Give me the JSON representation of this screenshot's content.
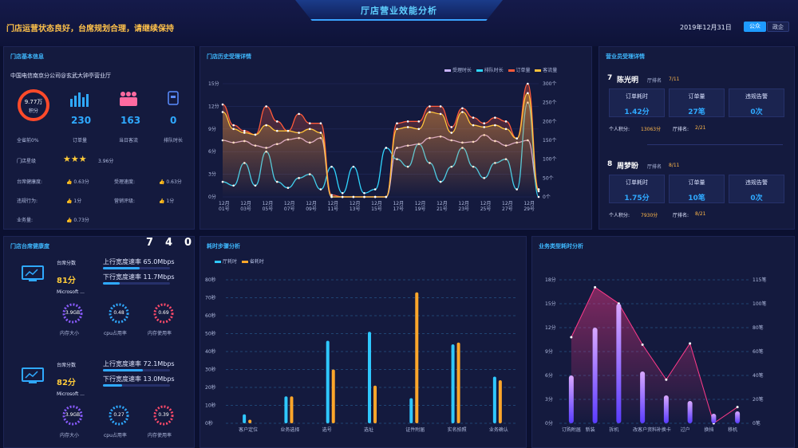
{
  "header": {
    "title": "厅店营业效能分析",
    "status": "门店运营状态良好，台席规划合理，请继续保持",
    "date": "2019年12月31日",
    "toggle_left": "公众",
    "toggle_right": "政企"
  },
  "store_basic": {
    "title": "门店基本信息",
    "name": "中国电信南京分公司@玄武大钟亭营业厅",
    "score_value": "9.77万",
    "score_unit": "积分",
    "score_caption": "全省前0%",
    "stats": [
      {
        "value": "230",
        "label": "订单量"
      },
      {
        "value": "163",
        "label": "当日客流"
      },
      {
        "value": "0",
        "label": "排队时长"
      }
    ],
    "level_label": "门店星级",
    "level_value": "3.96分",
    "level_stars": 3,
    "metrics": [
      {
        "label": "台席健康度:",
        "value": "0.63分"
      },
      {
        "label": "受理速度:",
        "value": "0.63分"
      },
      {
        "label": "违规行为:",
        "value": "1分"
      },
      {
        "label": "营销评级:",
        "value": "1分"
      },
      {
        "label": "业务量:",
        "value": "0.73分"
      }
    ],
    "colors": {
      "accent": "#2fa9ff",
      "ring": "#ff4a2a",
      "people": "#ff6aa0",
      "star": "#ffcb3a"
    }
  },
  "history": {
    "title": "门店历史受理详情",
    "legend": [
      "受理时长",
      "排队时长",
      "订单量",
      "客流量"
    ],
    "colors": [
      "#c9b3ff",
      "#2fd6ff",
      "#ff5a3a",
      "#ffc23a"
    ],
    "y_left": [
      "15分",
      "12分",
      "9分",
      "6分",
      "3分",
      "0分"
    ],
    "y_right": [
      "300个",
      "250个",
      "200个",
      "150个",
      "100个",
      "50个",
      "0个"
    ],
    "x": [
      "12月\n01号",
      "12月\n03号",
      "12月\n05号",
      "12月\n07号",
      "12月\n09号",
      "12月\n11号",
      "12月\n13号",
      "12月\n15号",
      "12月\n17号",
      "12月\n19号",
      "12月\n21号",
      "12月\n23号",
      "12月\n25号",
      "12月\n27号",
      "12月\n29号"
    ]
  },
  "staff": {
    "title": "营业员受理详情",
    "people": [
      {
        "rank": "7",
        "name": "陈光明",
        "store_rank_label": "厅排名",
        "store_rank": "7/11",
        "boxes": [
          {
            "h": "订单耗时",
            "v": "1.42分"
          },
          {
            "h": "订单量",
            "v": "27笔"
          },
          {
            "h": "违规告警",
            "v": "0次"
          }
        ],
        "points_label": "个人积分:",
        "points": "13063分",
        "hall_rank_label": "厅排名:",
        "hall_rank": "2/21"
      },
      {
        "rank": "8",
        "name": "周梦盼",
        "store_rank_label": "厅排名",
        "store_rank": "8/11",
        "boxes": [
          {
            "h": "订单耗时",
            "v": "1.75分"
          },
          {
            "h": "订单量",
            "v": "10笔"
          },
          {
            "h": "违规告警",
            "v": "0次"
          }
        ],
        "points_label": "个人积分:",
        "points": "7930分",
        "hall_rank_label": "厅排名:",
        "hall_rank": "8/21"
      }
    ]
  },
  "desk_health": {
    "title": "门店台席健康度",
    "counter": [
      "7",
      "4",
      "0"
    ],
    "desks": [
      {
        "score_label": "台席分数",
        "score": "81分",
        "os": "Microsoft ...",
        "up_label": "上行宽度速率",
        "up": "65.0Mbps",
        "up_pct": 0.55,
        "down_label": "下行宽度速率",
        "down": "11.7Mbps",
        "down_pct": 0.25,
        "mem": "3.9GB",
        "mem_label": "内存大小",
        "cpu": "0.48",
        "cpu_label": "cpu占用率",
        "memu": "0.69",
        "memu_label": "内存使用率"
      },
      {
        "score_label": "台席分数",
        "score": "82分",
        "os": "Microsoft ...",
        "up_label": "上行宽度速率",
        "up": "72.1Mbps",
        "up_pct": 0.6,
        "down_label": "下行宽度速率",
        "down": "13.0Mbps",
        "down_pct": 0.28,
        "mem": "3.9GB",
        "mem_label": "内存大小",
        "cpu": "0.27",
        "cpu_label": "cpu占用率",
        "memu": "0.39",
        "memu_label": "内存使用率"
      }
    ]
  },
  "step_time": {
    "title": "耗时步骤分析",
    "legend": [
      "厅耗时",
      "省耗时"
    ],
    "colors": [
      "#2fc8ff",
      "#ffa62a"
    ],
    "y": [
      "80秒",
      "70秒",
      "60秒",
      "50秒",
      "40秒",
      "30秒",
      "20秒",
      "10秒",
      "0秒"
    ]
  },
  "biz_time": {
    "title": "业务类型耗时分析",
    "y_left": [
      "18分",
      "15分",
      "12分",
      "9分",
      "6分",
      "3分",
      "0分"
    ],
    "y_right": [
      "115笔",
      "100笔",
      "80笔",
      "60笔",
      "40笔",
      "20笔",
      "0笔"
    ]
  },
  "chart_data": [
    {
      "type": "line",
      "title": "门店历史受理详情",
      "x": [
        "12月01号",
        "12月02号",
        "12月03号",
        "12月04号",
        "12月05号",
        "12月06号",
        "12月07号",
        "12月08号",
        "12月09号",
        "12月10号",
        "12月11号",
        "12月12号",
        "12月13号",
        "12月14号",
        "12月15号",
        "12月16号",
        "12月17号",
        "12月18号",
        "12月19号",
        "12月20号",
        "12月21号",
        "12月22号",
        "12月23号",
        "12月24号",
        "12月25号",
        "12月26号",
        "12月27号",
        "12月28号",
        "12月29号",
        "12月30号"
      ],
      "series": [
        {
          "name": "受理时长",
          "axis": "left",
          "values": [
            7.5,
            7.2,
            7.4,
            6.8,
            6.5,
            7.0,
            7.6,
            7.8,
            7.2,
            7.8,
            0,
            0,
            0,
            0,
            0,
            0,
            6.5,
            6.8,
            7.0,
            7.8,
            8.0,
            7.5,
            7.2,
            7.3,
            8.2,
            7.4,
            6.8,
            7.2,
            7.5,
            1
          ]
        },
        {
          "name": "排队时长",
          "axis": "left",
          "values": [
            2.0,
            1.5,
            4.5,
            1.5,
            6.0,
            2.0,
            1.2,
            2.5,
            3.0,
            1.0,
            4.0,
            0.5,
            4.0,
            0.5,
            1.0,
            6.5,
            5.0,
            4.0,
            7.0,
            4.5,
            2.0,
            4.0,
            6.5,
            4.0,
            2.5,
            4.5,
            5.0,
            1.0,
            12.5,
            0
          ]
        },
        {
          "name": "订单量",
          "axis": "right",
          "values": [
            245,
            190,
            175,
            165,
            240,
            200,
            175,
            220,
            195,
            195,
            5,
            0,
            0,
            0,
            0,
            0,
            195,
            200,
            200,
            240,
            240,
            185,
            235,
            210,
            195,
            210,
            200,
            155,
            300,
            20
          ]
        },
        {
          "name": "客流量",
          "axis": "right",
          "values": [
            225,
            180,
            170,
            165,
            190,
            175,
            175,
            170,
            180,
            170,
            0,
            0,
            0,
            0,
            0,
            0,
            180,
            185,
            180,
            225,
            220,
            170,
            225,
            190,
            185,
            190,
            180,
            155,
            275,
            15
          ]
        }
      ],
      "ylim_left": [
        0,
        15
      ],
      "ylim_right": [
        0,
        300
      ]
    },
    {
      "type": "bar",
      "title": "耗时步骤分析",
      "categories": [
        "客户定位",
        "业务选择",
        "选号",
        "选址",
        "证件附届",
        "实名拍照",
        "业务确认"
      ],
      "series": [
        {
          "name": "厅耗时",
          "values": [
            5,
            15,
            46,
            51,
            14,
            44,
            26
          ]
        },
        {
          "name": "省耗时",
          "values": [
            2,
            15,
            30,
            21,
            73,
            45,
            24
          ]
        }
      ],
      "ylim": [
        0,
        80
      ]
    },
    {
      "type": "bar",
      "title": "业务类型耗时分析",
      "categories": [
        "订购附届",
        "新装",
        "拆机",
        "改客户资料",
        "补换卡",
        "过户",
        "换挡",
        "移机"
      ],
      "series": [
        {
          "name": "耗时",
          "axis": "left",
          "values": [
            6,
            12,
            15,
            6.5,
            3.5,
            2.8,
            1.2,
            1.5
          ]
        },
        {
          "name": "笔数",
          "type": "area",
          "axis": "right",
          "values": [
            69,
            109,
            96,
            63,
            35,
            64,
            0,
            13
          ]
        }
      ],
      "ylim_left": [
        0,
        18
      ],
      "ylim_right": [
        0,
        115
      ]
    }
  ]
}
